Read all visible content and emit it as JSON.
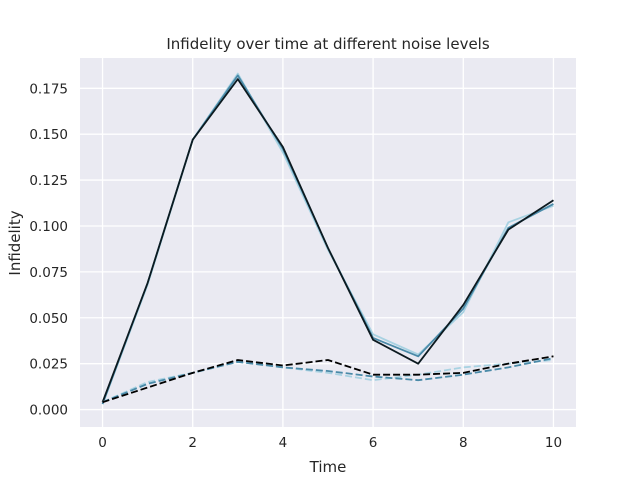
{
  "chart_data": {
    "type": "line",
    "title": "Infidelity over time at different noise levels",
    "xlabel": "Time",
    "ylabel": "Infidelity",
    "xlim": [
      -0.5,
      10.5
    ],
    "ylim": [
      -0.0095,
      0.1915
    ],
    "xticks": [
      0,
      2,
      4,
      6,
      8,
      10
    ],
    "yticks": [
      0.0,
      0.025,
      0.05,
      0.075,
      0.1,
      0.125,
      0.15,
      0.175
    ],
    "ytick_labels": [
      "0.000",
      "0.025",
      "0.050",
      "0.075",
      "0.100",
      "0.125",
      "0.150",
      "0.175"
    ],
    "grid": true,
    "background": "#eaeaf2",
    "x": [
      0,
      1,
      2,
      3,
      4,
      5,
      6,
      7,
      8,
      9,
      10
    ],
    "series": [
      {
        "color": "#a8d2e2",
        "dash": "solid",
        "values": [
          0.003,
          0.068,
          0.147,
          0.183,
          0.14,
          0.087,
          0.041,
          0.03,
          0.053,
          0.102,
          0.111
        ]
      },
      {
        "color": "#4a8aa8",
        "dash": "solid",
        "values": [
          0.003,
          0.069,
          0.147,
          0.182,
          0.142,
          0.088,
          0.039,
          0.029,
          0.055,
          0.099,
          0.112
        ]
      },
      {
        "color": "#0c1a20",
        "dash": "solid",
        "values": [
          0.004,
          0.069,
          0.147,
          0.18,
          0.143,
          0.088,
          0.038,
          0.025,
          0.057,
          0.098,
          0.114
        ]
      },
      {
        "color": "#a8d2e2",
        "dash": "dashed",
        "values": [
          0.004,
          0.015,
          0.02,
          0.026,
          0.023,
          0.02,
          0.016,
          0.019,
          0.023,
          0.025,
          0.027
        ]
      },
      {
        "color": "#4a8aa8",
        "dash": "dashed",
        "values": [
          0.004,
          0.014,
          0.02,
          0.026,
          0.023,
          0.021,
          0.018,
          0.016,
          0.019,
          0.023,
          0.028
        ]
      },
      {
        "color": "#000000",
        "dash": "dashed",
        "values": [
          0.004,
          0.012,
          0.02,
          0.027,
          0.024,
          0.027,
          0.019,
          0.019,
          0.02,
          0.025,
          0.029
        ]
      }
    ]
  }
}
